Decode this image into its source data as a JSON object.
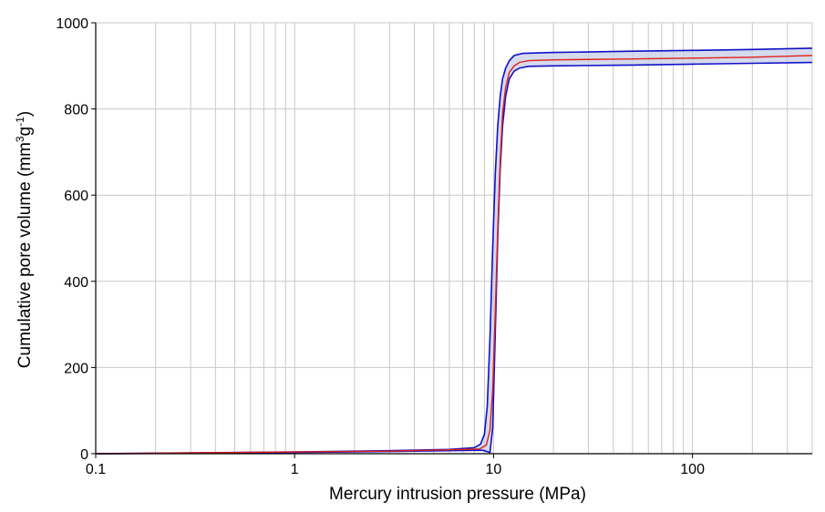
{
  "chart_data": {
    "type": "line",
    "title": "",
    "xlabel": "Mercury intrusion pressure (MPa)",
    "ylabel": {
      "prefix": "Cumulative pore volume (mm",
      "sup1": "3",
      "mid": "g",
      "sup2": "-1",
      "suffix": ")"
    },
    "x_scale": "log",
    "xlim": [
      0.1,
      400
    ],
    "ylim": [
      0,
      1000
    ],
    "x_ticks": [
      {
        "value": 0.1,
        "label": "0.1"
      },
      {
        "value": 1,
        "label": "1"
      },
      {
        "value": 10,
        "label": "10"
      },
      {
        "value": 100,
        "label": "100"
      }
    ],
    "y_ticks": [
      {
        "value": 0,
        "label": "0"
      },
      {
        "value": 200,
        "label": "200"
      },
      {
        "value": 400,
        "label": "400"
      },
      {
        "value": 600,
        "label": "600"
      },
      {
        "value": 800,
        "label": "800"
      },
      {
        "value": 1000,
        "label": "1000"
      }
    ],
    "grid": true,
    "legend": false,
    "colors": {
      "mean_line": "#e0201a",
      "bound_lines": "#1010c8",
      "band_fill": "#c7cde6",
      "grid": "#c8c8c8",
      "axis": "#000000"
    },
    "series": [
      {
        "role": "upper",
        "x": [
          0.1,
          0.3,
          1,
          3,
          6,
          8,
          8.6,
          9.0,
          9.3,
          9.6,
          9.9,
          10.2,
          10.5,
          10.8,
          11.1,
          11.5,
          12.0,
          12.7,
          14,
          20,
          50,
          100,
          200,
          400
        ],
        "y": [
          0,
          2,
          4,
          7,
          10,
          14,
          22,
          45,
          110,
          270,
          480,
          650,
          760,
          830,
          870,
          895,
          912,
          924,
          929,
          931,
          934,
          936,
          938,
          941
        ]
      },
      {
        "role": "mean",
        "x": [
          0.1,
          0.3,
          1,
          3,
          6,
          8.5,
          9.2,
          9.6,
          9.9,
          10.2,
          10.5,
          10.8,
          11.1,
          11.5,
          12.0,
          12.7,
          13.5,
          15,
          20,
          50,
          100,
          200,
          400
        ],
        "y": [
          0,
          2,
          4,
          6,
          9,
          11,
          20,
          55,
          150,
          330,
          520,
          680,
          790,
          850,
          885,
          900,
          908,
          912,
          914,
          916,
          918,
          920,
          924
        ]
      },
      {
        "role": "lower",
        "x": [
          0.1,
          0.3,
          1,
          3,
          6,
          8.8,
          9.6,
          9.9,
          10.2,
          10.5,
          10.8,
          11.1,
          11.5,
          12.0,
          12.7,
          13.5,
          15,
          20,
          50,
          100,
          200,
          400
        ],
        "y": [
          0,
          1,
          3,
          5,
          7,
          8,
          3,
          60,
          280,
          500,
          660,
          760,
          830,
          870,
          888,
          895,
          899,
          900,
          902,
          904,
          906,
          908
        ]
      }
    ]
  }
}
